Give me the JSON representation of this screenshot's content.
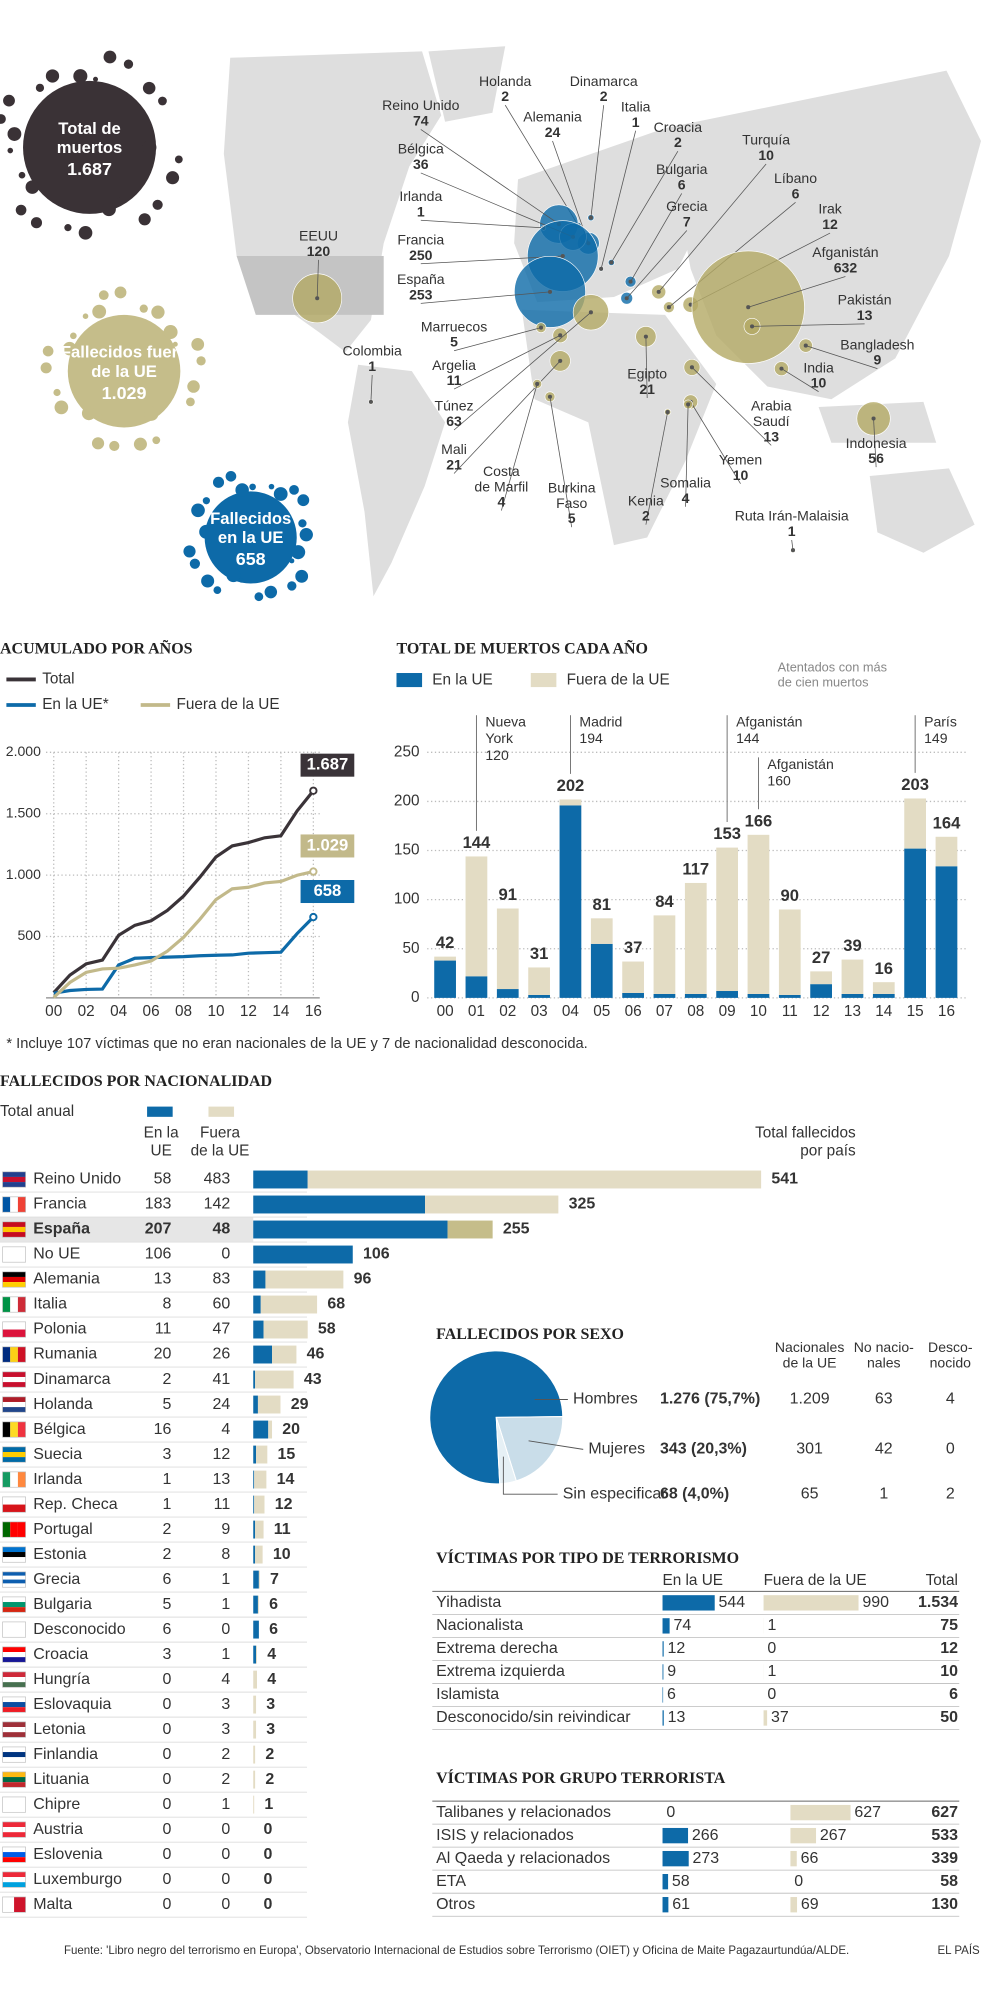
{
  "map": {
    "eu_color": "#0d6aa8",
    "non_eu_color": "#b3a964",
    "totals": [
      {
        "label": [
          "Total de",
          "muertos"
        ],
        "value": {
          "value": 1687,
          "label": "1.687"
        }
      },
      {
        "label": [
          "Fallecidos fuera",
          "de la UE"
        ],
        "value": {
          "value": 1029,
          "label": "1.029"
        }
      },
      {
        "label": [
          "Fallecidos",
          "en la UE"
        ],
        "value": 658
      }
    ],
    "countries": [
      {
        "name": "Holanda",
        "value": 2,
        "in_eu": true
      },
      {
        "name": "Dinamarca",
        "value": 2,
        "in_eu": true
      },
      {
        "name": "Reino Unido",
        "value": 74,
        "in_eu": true
      },
      {
        "name": "Alemania",
        "value": 24,
        "in_eu": true
      },
      {
        "name": "Italia",
        "value": 1,
        "in_eu": true
      },
      {
        "name": "Croacia",
        "value": 2,
        "in_eu": true
      },
      {
        "name": "Bélgica",
        "value": 36,
        "in_eu": true
      },
      {
        "name": "Turquía",
        "value": 10,
        "in_eu": false
      },
      {
        "name": "Bulgaria",
        "value": 6,
        "in_eu": true
      },
      {
        "name": "Líbano",
        "value": 6,
        "in_eu": false
      },
      {
        "name": "Irlanda",
        "value": 1,
        "in_eu": true
      },
      {
        "name": "Grecia",
        "value": 7,
        "in_eu": true
      },
      {
        "name": "Irak",
        "value": 12,
        "in_eu": false
      },
      {
        "name": "Francia",
        "value": 250,
        "in_eu": true
      },
      {
        "name": "EEUU",
        "value": 120,
        "in_eu": false
      },
      {
        "name": "Afganistán",
        "value": 632,
        "in_eu": false
      },
      {
        "name": "España",
        "value": 253,
        "in_eu": true
      },
      {
        "name": "Pakistán",
        "value": 13,
        "in_eu": false
      },
      {
        "name": "Marruecos",
        "value": 5,
        "in_eu": false
      },
      {
        "name": "Bangladesh",
        "value": 9,
        "in_eu": false
      },
      {
        "name": "Colombia",
        "value": 1,
        "in_eu": false
      },
      {
        "name": "Argelia",
        "value": 11,
        "in_eu": false
      },
      {
        "name": "India",
        "value": 10,
        "in_eu": false
      },
      {
        "name": "Egipto",
        "value": 21,
        "in_eu": false
      },
      {
        "name": "Túnez",
        "value": 63,
        "in_eu": false
      },
      {
        "name": [
          "Arabia",
          "Saudí"
        ],
        "value": 13,
        "in_eu": false
      },
      {
        "name": "Mali",
        "value": 21,
        "in_eu": false
      },
      {
        "name": "Indonesia",
        "value": 56,
        "in_eu": false
      },
      {
        "name": "Yemen",
        "value": 10,
        "in_eu": false
      },
      {
        "name": [
          "Costa",
          "de Marfil"
        ],
        "value": 4,
        "in_eu": false
      },
      {
        "name": [
          "Burkina",
          "Faso"
        ],
        "value": 5,
        "in_eu": false
      },
      {
        "name": "Somalia",
        "value": 4,
        "in_eu": false
      },
      {
        "name": "Kenia",
        "value": 2,
        "in_eu": false
      },
      {
        "name": "Ruta Irán-Malaisia",
        "value": 1,
        "in_eu": false
      }
    ]
  },
  "cumulative": {
    "type": "line",
    "title": "ACUMULADO POR AÑOS",
    "x": [
      0,
      1,
      2,
      3,
      4,
      5,
      6,
      7,
      8,
      9,
      10,
      11,
      12,
      13,
      14,
      15,
      16
    ],
    "xlim": [
      0,
      16
    ],
    "xticks": [
      {
        "value": 0,
        "label": "00"
      },
      {
        "value": 2,
        "label": "02"
      },
      {
        "value": 4,
        "label": "04"
      },
      {
        "value": 6,
        "label": "06"
      },
      {
        "value": 8,
        "label": "08"
      },
      10,
      12,
      14,
      16
    ],
    "ylim": [
      0,
      2000
    ],
    "yticks": [
      500,
      {
        "value": 1000,
        "label": "1.000"
      },
      {
        "value": 1500,
        "label": "1.500"
      },
      {
        "value": 2000,
        "label": "2.000"
      }
    ],
    "series": [
      {
        "name": "Total",
        "color": "#3a3338",
        "values": [
          42,
          186,
          277,
          308,
          510,
          591,
          628,
          712,
          829,
          982,
          1148,
          1238,
          1265,
          1304,
          1320,
          1523,
          1687
        ],
        "end_label": "1.687"
      },
      {
        "name": "En la UE*",
        "color": "#0d6aa8",
        "values": [
          38,
          60,
          69,
          72,
          268,
          323,
          328,
          332,
          336,
          343,
          347,
          350,
          364,
          368,
          372,
          524,
          658
        ],
        "end_label": "658"
      },
      {
        "name": "Fuera de la UE",
        "color": "#c2b98a",
        "values": [
          4,
          126,
          208,
          236,
          242,
          268,
          300,
          380,
          493,
          639,
          801,
          888,
          901,
          936,
          948,
          999,
          1029
        ],
        "end_label": "1.029"
      }
    ],
    "footnote": "* Incluye 107 víctimas que no eran nacionales de la UE y 7 de nacionalidad desconocida."
  },
  "yearly": {
    "type": "bar",
    "stacked": true,
    "title": "TOTAL DE MUERTOS CADA AÑO",
    "note": [
      "Atentados con más",
      "de cien muertos"
    ],
    "categories": [
      "00",
      "01",
      "02",
      "03",
      "04",
      "05",
      "06",
      "07",
      "08",
      "09",
      "10",
      "11",
      "12",
      "13",
      "14",
      "15",
      "16"
    ],
    "series": [
      {
        "name": "En la UE",
        "color": "#0d6aa8",
        "values": [
          38,
          22,
          9,
          3,
          196,
          55,
          5,
          4,
          4,
          7,
          4,
          3,
          14,
          4,
          4,
          152,
          134
        ]
      },
      {
        "name": "Fuera de la UE",
        "color": "#e3dcc4",
        "values": [
          4,
          122,
          82,
          28,
          6,
          26,
          32,
          80,
          113,
          146,
          162,
          87,
          13,
          35,
          12,
          51,
          30
        ]
      }
    ],
    "totals": [
      42,
      144,
      91,
      31,
      202,
      81,
      37,
      84,
      117,
      153,
      166,
      90,
      27,
      39,
      16,
      203,
      164
    ],
    "ylim": [
      0,
      250
    ],
    "yticks": [
      0,
      50,
      100,
      150,
      200,
      250
    ],
    "annotations": [
      {
        "category": "01",
        "label": [
          "Nueva",
          "York"
        ],
        "value": 120
      },
      {
        "category": "04",
        "label": [
          "Madrid"
        ],
        "value": 194
      },
      {
        "category": "09",
        "label": [
          "Afganistán"
        ],
        "value": 144
      },
      {
        "category": "10",
        "label": [
          "Afganistán"
        ],
        "value": 160
      },
      {
        "category": "15",
        "label": [
          "París"
        ],
        "value": 149
      }
    ]
  },
  "nationality": {
    "title": "FALLECIDOS POR NACIONALIDAD",
    "legend_label": "Total anual",
    "eu_color": "#0d6aa8",
    "non_eu_color": "#e3dcc4",
    "highlight": "España",
    "headers": {
      "eu": [
        "En la",
        "UE"
      ],
      "non_eu": [
        "Fuera",
        "de la UE"
      ],
      "total": [
        "Total fallecidos",
        "por país"
      ]
    },
    "rows": [
      {
        "name": "Reino Unido",
        "eu": 58,
        "non_eu": 483,
        "total": 541
      },
      {
        "name": "Francia",
        "eu": 183,
        "non_eu": 142,
        "total": 325
      },
      {
        "name": "España",
        "eu": 207,
        "non_eu": 48,
        "total": 255
      },
      {
        "name": "No UE",
        "eu": 106,
        "non_eu": 0,
        "total": 106
      },
      {
        "name": "Alemania",
        "eu": 13,
        "non_eu": 83,
        "total": 96
      },
      {
        "name": "Italia",
        "eu": 8,
        "non_eu": 60,
        "total": 68
      },
      {
        "name": "Polonia",
        "eu": 11,
        "non_eu": 47,
        "total": 58
      },
      {
        "name": "Rumania",
        "eu": 20,
        "non_eu": 26,
        "total": 46
      },
      {
        "name": "Dinamarca",
        "eu": 2,
        "non_eu": 41,
        "total": 43
      },
      {
        "name": "Holanda",
        "eu": 5,
        "non_eu": 24,
        "total": 29
      },
      {
        "name": "Bélgica",
        "eu": 16,
        "non_eu": 4,
        "total": 20
      },
      {
        "name": "Suecia",
        "eu": 3,
        "non_eu": 12,
        "total": 15
      },
      {
        "name": "Irlanda",
        "eu": 1,
        "non_eu": 13,
        "total": 14
      },
      {
        "name": "Rep. Checa",
        "eu": 1,
        "non_eu": 11,
        "total": 12
      },
      {
        "name": "Portugal",
        "eu": 2,
        "non_eu": 9,
        "total": 11
      },
      {
        "name": "Estonia",
        "eu": 2,
        "non_eu": 8,
        "total": 10
      },
      {
        "name": "Grecia",
        "eu": 6,
        "non_eu": 1,
        "total": 7
      },
      {
        "name": "Bulgaria",
        "eu": 5,
        "non_eu": 1,
        "total": 6
      },
      {
        "name": "Desconocido",
        "eu": 6,
        "non_eu": 0,
        "total": 6
      },
      {
        "name": "Croacia",
        "eu": 3,
        "non_eu": 1,
        "total": 4
      },
      {
        "name": "Hungría",
        "eu": 0,
        "non_eu": 4,
        "total": 4
      },
      {
        "name": "Eslovaquia",
        "eu": 0,
        "non_eu": 3,
        "total": 3
      },
      {
        "name": "Letonia",
        "eu": 0,
        "non_eu": 3,
        "total": 3
      },
      {
        "name": "Finlandia",
        "eu": 0,
        "non_eu": 2,
        "total": 2
      },
      {
        "name": "Lituania",
        "eu": 0,
        "non_eu": 2,
        "total": 2
      },
      {
        "name": "Chipre",
        "eu": 0,
        "non_eu": 1,
        "total": 1
      },
      {
        "name": "Austria",
        "eu": 0,
        "non_eu": 0,
        "total": 0
      },
      {
        "name": "Eslovenia",
        "eu": 0,
        "non_eu": 0,
        "total": 0
      },
      {
        "name": "Luxemburgo",
        "eu": 0,
        "non_eu": 0,
        "total": 0
      },
      {
        "name": "Malta",
        "eu": 0,
        "non_eu": 0,
        "total": 0
      }
    ]
  },
  "sex": {
    "type": "pie",
    "title": "FALLECIDOS POR SEXO",
    "headers": [
      [
        "Nacionales",
        "de la UE"
      ],
      [
        "No nacio-",
        "nales"
      ],
      [
        "Desco-",
        "nocido"
      ]
    ],
    "rows": [
      {
        "name": "Hombres",
        "label": "1.276 (75,7%)",
        "value": 1276,
        "color": "#0d6aa8",
        "eu": {
          "value": 1209,
          "label": "1.209"
        },
        "non_eu": 63,
        "unknown": 4
      },
      {
        "name": "Mujeres",
        "label": "343 (20,3%)",
        "value": 343,
        "color": "#c9dde9",
        "eu": 301,
        "non_eu": 42,
        "unknown": 0
      },
      {
        "name": "Sin especificar",
        "label": "68 (4,0%)",
        "value": 68,
        "color": "#e6f0f5",
        "eu": 65,
        "non_eu": 1,
        "unknown": 2
      }
    ]
  },
  "by_type": {
    "title": "VÍCTIMAS POR TIPO DE TERRORISMO",
    "headers": [
      "En la UE",
      "Fuera de la UE",
      "Total"
    ],
    "eu_color": "#0d6aa8",
    "non_eu_color": "#e3dcc4",
    "rows": [
      {
        "name": "Yihadista",
        "eu": 544,
        "non_eu": 990,
        "total": {
          "value": 1534,
          "label": "1.534"
        }
      },
      {
        "name": "Nacionalista",
        "eu": 74,
        "non_eu": 1,
        "total": 75
      },
      {
        "name": "Extrema derecha",
        "eu": 12,
        "non_eu": 0,
        "total": 12
      },
      {
        "name": "Extrema izquierda",
        "eu": 9,
        "non_eu": 1,
        "total": 10
      },
      {
        "name": "Islamista",
        "eu": 6,
        "non_eu": 0,
        "total": 6
      },
      {
        "name": "Desconocido/sin reivindicar",
        "eu": 13,
        "non_eu": 37,
        "total": 50
      }
    ]
  },
  "by_group": {
    "title": "VÍCTIMAS POR GRUPO TERRORISTA",
    "eu_color": "#0d6aa8",
    "non_eu_color": "#e3dcc4",
    "rows": [
      {
        "name": "Talibanes y relacionados",
        "eu": 0,
        "non_eu": 627,
        "total": 627
      },
      {
        "name": "ISIS y relacionados",
        "eu": 266,
        "non_eu": 267,
        "total": 533
      },
      {
        "name": "Al Qaeda y relacionados",
        "eu": 273,
        "non_eu": 66,
        "total": 339
      },
      {
        "name": "ETA",
        "eu": 58,
        "non_eu": 0,
        "total": 58
      },
      {
        "name": "Otros",
        "eu": 61,
        "non_eu": 69,
        "total": 130
      }
    ]
  },
  "footer": {
    "source": "Fuente: 'Libro negro del terrorismo en Europa', Observatorio Internacional de Estudios sobre Terrorismo (OIET) y Oficina de Maite Pagazaurtundúa/ALDE.",
    "brand": "EL PAÍS"
  }
}
